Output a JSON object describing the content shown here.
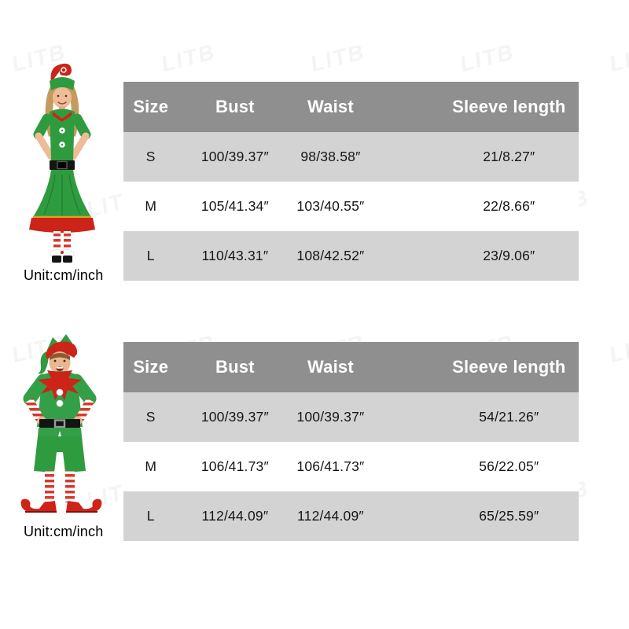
{
  "watermark": {
    "text": "LITB"
  },
  "unit": {
    "label": "Unit:cm/inch"
  },
  "figures": {
    "top": "women-elf-costume-photo",
    "bottom": "men-elf-costume-photo"
  },
  "colors": {
    "table_header_bg": "#8f8f8f",
    "table_header_text": "#ffffff",
    "table_row_shade": "#d3d3d3",
    "elf_green": "#2f9b3f",
    "elf_red": "#cc2418"
  },
  "size_charts": [
    {
      "figure": "women-elf-costume",
      "columns": [
        "Size",
        "Bust",
        "Waist",
        "Sleeve length"
      ],
      "rows": [
        {
          "size": "S",
          "bust": "100/39.37″",
          "waist": "98/38.58″",
          "sleeve": "21/8.27″"
        },
        {
          "size": "M",
          "bust": "105/41.34″",
          "waist": "103/40.55″",
          "sleeve": "22/8.66″"
        },
        {
          "size": "L",
          "bust": "110/43.31″",
          "waist": "108/42.52″",
          "sleeve": "23/9.06″"
        }
      ]
    },
    {
      "figure": "men-elf-costume",
      "columns": [
        "Size",
        "Bust",
        "Waist",
        "Sleeve length"
      ],
      "rows": [
        {
          "size": "S",
          "bust": "100/39.37″",
          "waist": "100/39.37″",
          "sleeve": "54/21.26″"
        },
        {
          "size": "M",
          "bust": "106/41.73″",
          "waist": "106/41.73″",
          "sleeve": "56/22.05″"
        },
        {
          "size": "L",
          "bust": "112/44.09″",
          "waist": "112/44.09″",
          "sleeve": "65/25.59″"
        }
      ]
    }
  ]
}
